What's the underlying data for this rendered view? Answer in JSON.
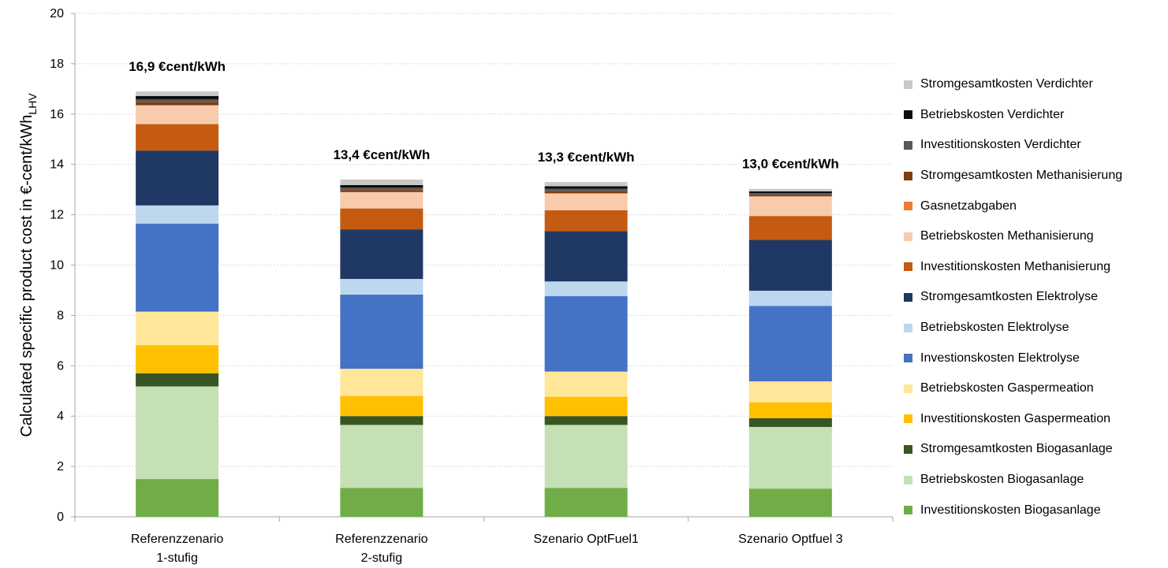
{
  "chart_data": {
    "type": "bar",
    "stacked": true,
    "y_axis": {
      "label_main": "Calculated specific product cost in €-cent/kWh",
      "label_sub": "LHV",
      "range": [
        0,
        20
      ],
      "ticks": [
        "0",
        "2",
        "4",
        "6",
        "8",
        "10",
        "12",
        "14",
        "16",
        "18",
        "20"
      ],
      "grid": true
    },
    "categories": [
      {
        "line1": "Referenzzenario",
        "line2": "1-stufig"
      },
      {
        "line1": "Referenzzenario",
        "line2": "2-stufig"
      },
      {
        "line1": "Szenario OptFuel1",
        "line2": ""
      },
      {
        "line1": "Szenario Optfuel 3",
        "line2": ""
      }
    ],
    "totals": [
      "16,9 €cent/kWh",
      "13,4 €cent/kWh",
      "13,3 €cent/kWh",
      "13,0 €cent/kWh"
    ],
    "total_values": [
      16.9,
      13.4,
      13.3,
      13.0
    ],
    "legend_position": "right",
    "series": [
      {
        "name": "Investitionskosten Biogasanlage",
        "color": "#70ad47",
        "values": [
          1.5,
          1.15,
          1.15,
          1.12
        ]
      },
      {
        "name": "Betriebskosten Biogasanlage",
        "color": "#c5e0b4",
        "values": [
          3.68,
          2.5,
          2.5,
          2.45
        ]
      },
      {
        "name": "Stromgesamtkosten Biogasanlage",
        "color": "#375623",
        "values": [
          0.52,
          0.35,
          0.35,
          0.35
        ]
      },
      {
        "name": "Investitionskosten Gaspermeation",
        "color": "#ffc000",
        "values": [
          1.12,
          0.8,
          0.77,
          0.63
        ]
      },
      {
        "name": "Betriebskosten Gaspermeation",
        "color": "#ffe699",
        "values": [
          1.33,
          1.08,
          1.0,
          0.83
        ]
      },
      {
        "name": "Investionskosten Elektrolyse",
        "color": "#4472c4",
        "values": [
          3.5,
          2.95,
          3.0,
          3.0
        ]
      },
      {
        "name": "Betriebskosten Elektrolyse",
        "color": "#bdd7ee",
        "values": [
          0.72,
          0.62,
          0.58,
          0.6
        ]
      },
      {
        "name": "Stromgesamtkosten Elektrolyse",
        "color": "#203864",
        "values": [
          2.18,
          1.97,
          2.0,
          2.02
        ]
      },
      {
        "name": "Investitionskosten Methanisierung",
        "color": "#c55a11",
        "values": [
          1.05,
          0.83,
          0.83,
          0.95
        ]
      },
      {
        "name": "Betriebskosten Methanisierung",
        "color": "#f8cbad",
        "values": [
          0.75,
          0.65,
          0.67,
          0.78
        ]
      },
      {
        "name": "Gasnetzabgaben",
        "color": "#ed7d31",
        "values": [
          0.0,
          0.0,
          0.0,
          0.0
        ]
      },
      {
        "name": "Stromgesamtkosten Methanisierung",
        "color": "#843c0c",
        "values": [
          0.12,
          0.08,
          0.08,
          0.06
        ]
      },
      {
        "name": "Investitionskosten Verdichter",
        "color": "#595959",
        "values": [
          0.12,
          0.1,
          0.1,
          0.07
        ]
      },
      {
        "name": "Betriebskosten Verdichter",
        "color": "#0d0d0d",
        "values": [
          0.13,
          0.1,
          0.1,
          0.07
        ]
      },
      {
        "name": "Stromgesamtkosten Verdichter",
        "color": "#c9c9c9",
        "values": [
          0.18,
          0.22,
          0.17,
          0.1
        ]
      }
    ]
  }
}
